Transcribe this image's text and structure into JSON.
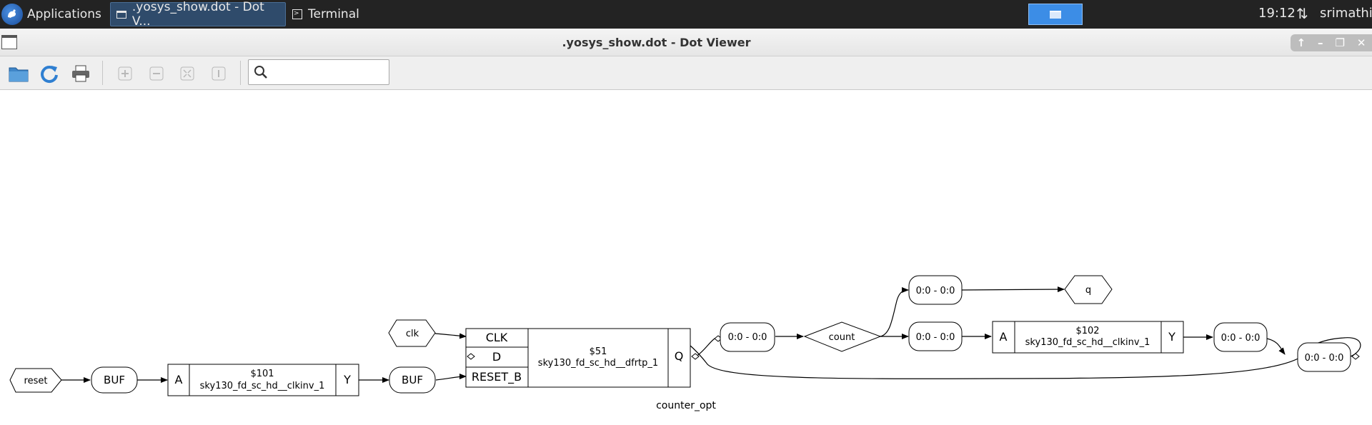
{
  "panel": {
    "apps_label": "Applications",
    "tasks": [
      {
        "label": ".yosys_show.dot - Dot V..."
      },
      {
        "label": "Terminal"
      }
    ],
    "clock": "19:12",
    "user": "srimathi"
  },
  "window": {
    "title": ".yosys_show.dot - Dot Viewer"
  },
  "toolbar": {
    "search_placeholder": ""
  },
  "graph": {
    "nodes": {
      "reset": "reset",
      "buf1": "BUF",
      "inv1_a": "A",
      "inv1_id": "$101",
      "inv1_cell": "sky130_fd_sc_hd__clkinv_1",
      "inv1_y": "Y",
      "buf2": "BUF",
      "clk": "clk",
      "dff_clk": "CLK",
      "dff_d": "D",
      "dff_reset": "RESET_B",
      "dff_id": "$51",
      "dff_cell": "sky130_fd_sc_hd__dfrtp_1",
      "dff_q": "Q",
      "slice1": "0:0 - 0:0",
      "count": "count",
      "slice2": "0:0 - 0:0",
      "q": "q",
      "slice3": "0:0 - 0:0",
      "inv2_a": "A",
      "inv2_id": "$102",
      "inv2_cell": "sky130_fd_sc_hd__clkinv_1",
      "inv2_y": "Y",
      "slice4": "0:0 - 0:0",
      "slice5": "0:0 - 0:0"
    },
    "graph_label": "counter_opt"
  },
  "colors": {
    "panel_bg": "#232323",
    "active_task": "#2f4b6b",
    "workspace": "#3c8de6"
  }
}
